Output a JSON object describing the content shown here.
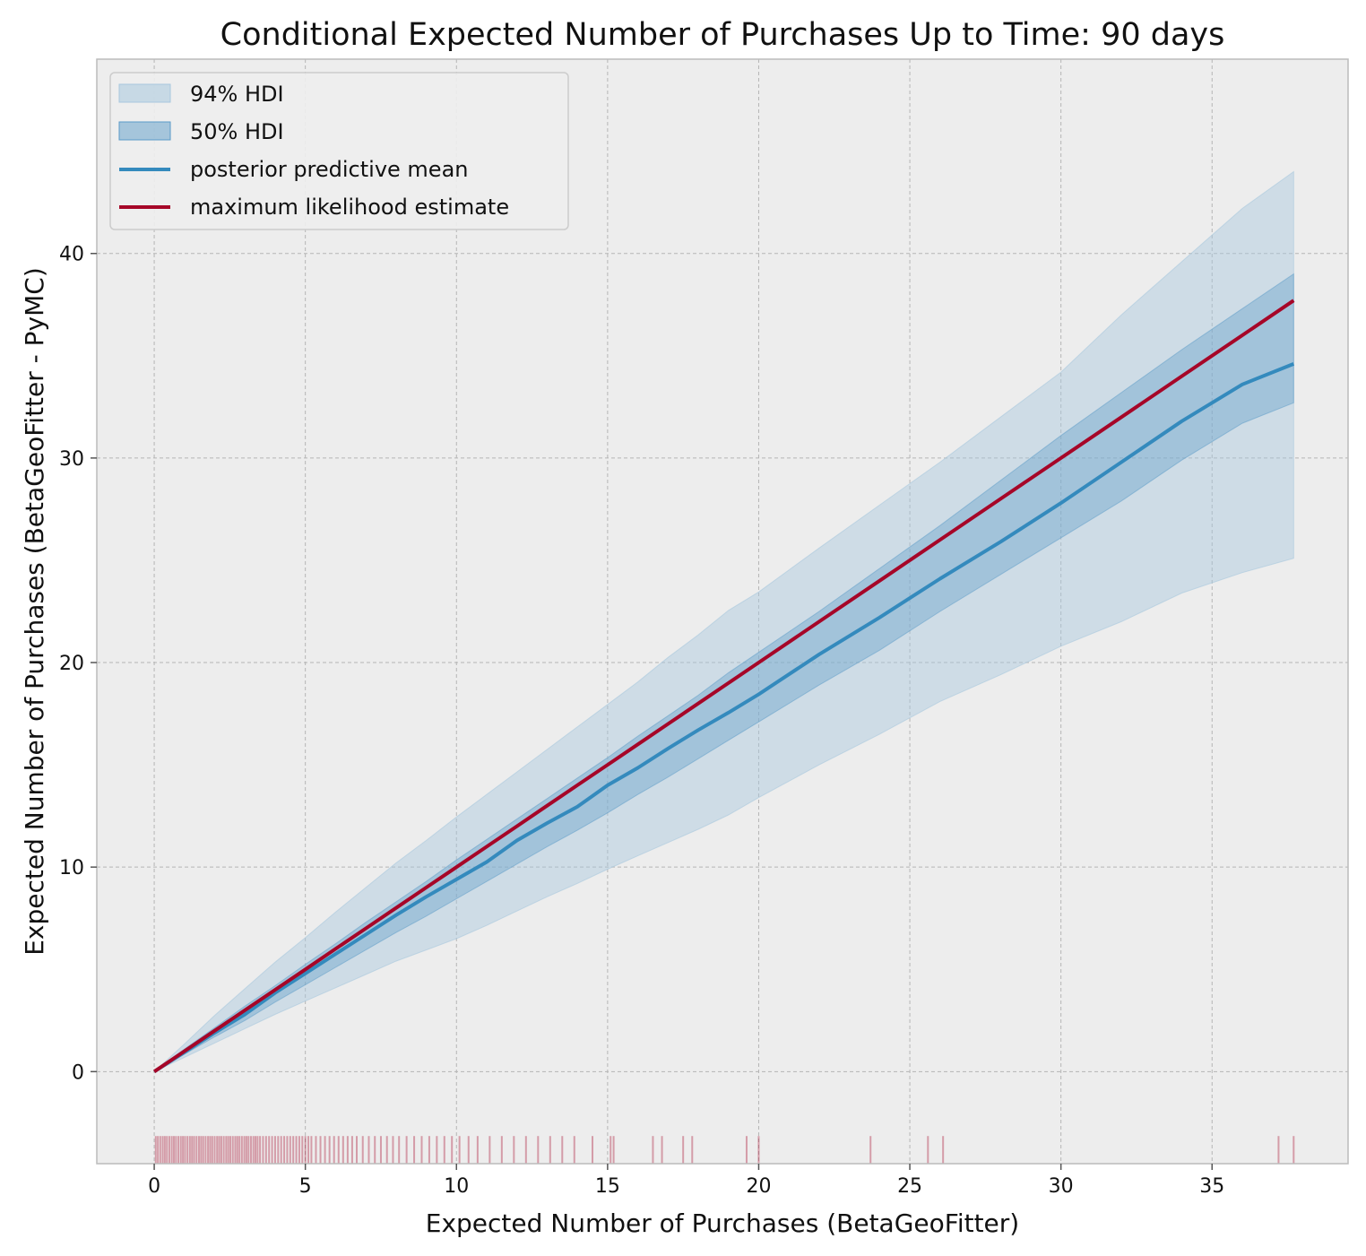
{
  "chart_data": {
    "type": "line",
    "title": "Conditional Expected Number of Purchases Up to Time: 90 days",
    "xlabel": "Expected Number of Purchases (BetaGeoFitter)",
    "ylabel": "Expected Number of Purchases (BetaGeoFitter - PyMC)",
    "xlim": [
      -1.9,
      39.5
    ],
    "ylim": [
      -4.5,
      49.5
    ],
    "x_ticks": [
      0,
      5,
      10,
      15,
      20,
      25,
      30,
      35
    ],
    "y_ticks": [
      0,
      10,
      20,
      30,
      40
    ],
    "grid": true,
    "legend_position": "top-left",
    "legend": [
      {
        "label": "94% HDI",
        "kind": "band-light"
      },
      {
        "label": "50% HDI",
        "kind": "band-dark"
      },
      {
        "label": "posterior predictive mean",
        "kind": "line-blue"
      },
      {
        "label": "maximum likelihood estimate",
        "kind": "line-red"
      }
    ],
    "colors": {
      "hdi94": "#a8c8de",
      "hdi50": "#5b9bc8",
      "mean": "#348abd",
      "mle": "#a60628",
      "rug": "#a60628",
      "background": "#ededed",
      "grid": "#b5b5b5"
    },
    "x": [
      0,
      1,
      2,
      3,
      4,
      5,
      6,
      7,
      8,
      9,
      10,
      11,
      12,
      13,
      14,
      15,
      16,
      17,
      18,
      19,
      20,
      22,
      24,
      26,
      28,
      30,
      32,
      34,
      36,
      37.7
    ],
    "series": [
      {
        "name": "posterior predictive mean",
        "values": [
          0,
          0.95,
          1.9,
          2.8,
          3.85,
          4.8,
          5.75,
          6.7,
          7.65,
          8.55,
          9.4,
          10.25,
          11.3,
          12.15,
          12.95,
          14.0,
          14.85,
          15.8,
          16.7,
          17.55,
          18.45,
          20.4,
          22.2,
          24.1,
          25.9,
          27.8,
          29.8,
          31.8,
          33.6,
          34.6
        ]
      },
      {
        "name": "maximum likelihood estimate",
        "values": [
          0,
          1.0,
          2.0,
          3.0,
          4.0,
          5.0,
          6.0,
          7.0,
          8.0,
          9.0,
          10.0,
          11.0,
          12.0,
          13.0,
          14.0,
          15.0,
          16.0,
          17.0,
          18.0,
          19.0,
          20.0,
          22.0,
          24.0,
          26.0,
          28.0,
          30.0,
          32.0,
          34.0,
          36.0,
          37.7
        ]
      },
      {
        "name": "94% HDI lower",
        "values": [
          0,
          0.7,
          1.4,
          2.1,
          2.8,
          3.45,
          4.1,
          4.75,
          5.4,
          5.95,
          6.5,
          7.15,
          7.85,
          8.55,
          9.2,
          9.9,
          10.55,
          11.2,
          11.85,
          12.55,
          13.4,
          15.0,
          16.5,
          18.1,
          19.4,
          20.8,
          22.0,
          23.4,
          24.4,
          25.1
        ]
      },
      {
        "name": "94% HDI upper",
        "values": [
          0,
          1.35,
          2.75,
          4.05,
          5.35,
          6.55,
          7.8,
          9.0,
          10.2,
          11.3,
          12.45,
          13.55,
          14.65,
          15.75,
          16.85,
          17.95,
          19.05,
          20.25,
          21.35,
          22.55,
          23.45,
          25.6,
          27.7,
          29.8,
          32.0,
          34.2,
          37.0,
          39.6,
          42.2,
          44.0
        ]
      },
      {
        "name": "50% HDI lower",
        "values": [
          0,
          0.85,
          1.7,
          2.5,
          3.4,
          4.25,
          5.1,
          5.95,
          6.8,
          7.6,
          8.45,
          9.3,
          10.15,
          11.0,
          11.8,
          12.65,
          13.55,
          14.4,
          15.3,
          16.2,
          17.1,
          18.9,
          20.6,
          22.5,
          24.3,
          26.1,
          27.9,
          29.9,
          31.7,
          32.7
        ]
      },
      {
        "name": "50% HDI upper",
        "values": [
          0,
          1.1,
          2.15,
          3.2,
          4.2,
          5.25,
          6.25,
          7.3,
          8.3,
          9.3,
          10.35,
          11.35,
          12.35,
          13.35,
          14.35,
          15.35,
          16.4,
          17.4,
          18.4,
          19.5,
          20.5,
          22.5,
          24.6,
          26.7,
          28.9,
          31.1,
          33.2,
          35.3,
          37.3,
          39.0
        ]
      }
    ],
    "rug_values": [
      0.05,
      0.12,
      0.2,
      0.28,
      0.35,
      0.42,
      0.5,
      0.58,
      0.65,
      0.72,
      0.8,
      0.88,
      0.95,
      1.02,
      1.1,
      1.18,
      1.25,
      1.32,
      1.4,
      1.48,
      1.55,
      1.62,
      1.7,
      1.78,
      1.85,
      1.92,
      2.0,
      2.08,
      2.15,
      2.22,
      2.3,
      2.38,
      2.45,
      2.52,
      2.6,
      2.68,
      2.75,
      2.82,
      2.9,
      2.98,
      3.05,
      3.12,
      3.2,
      3.28,
      3.35,
      3.42,
      3.5,
      3.6,
      3.7,
      3.8,
      3.9,
      4.0,
      4.1,
      4.2,
      4.3,
      4.4,
      4.5,
      4.6,
      4.7,
      4.8,
      4.9,
      5.0,
      5.1,
      5.2,
      5.35,
      5.5,
      5.65,
      5.8,
      5.95,
      6.1,
      6.25,
      6.4,
      6.55,
      6.7,
      6.9,
      7.1,
      7.3,
      7.5,
      7.7,
      7.9,
      8.1,
      8.35,
      8.6,
      8.85,
      9.1,
      9.35,
      9.6,
      9.85,
      10.1,
      10.4,
      10.7,
      11.1,
      11.5,
      11.9,
      12.3,
      12.7,
      13.1,
      13.5,
      13.9,
      14.5,
      15.1,
      15.2,
      16.5,
      16.8,
      17.5,
      17.8,
      19.6,
      20.0,
      23.7,
      25.6,
      26.1,
      37.2,
      37.7
    ]
  }
}
